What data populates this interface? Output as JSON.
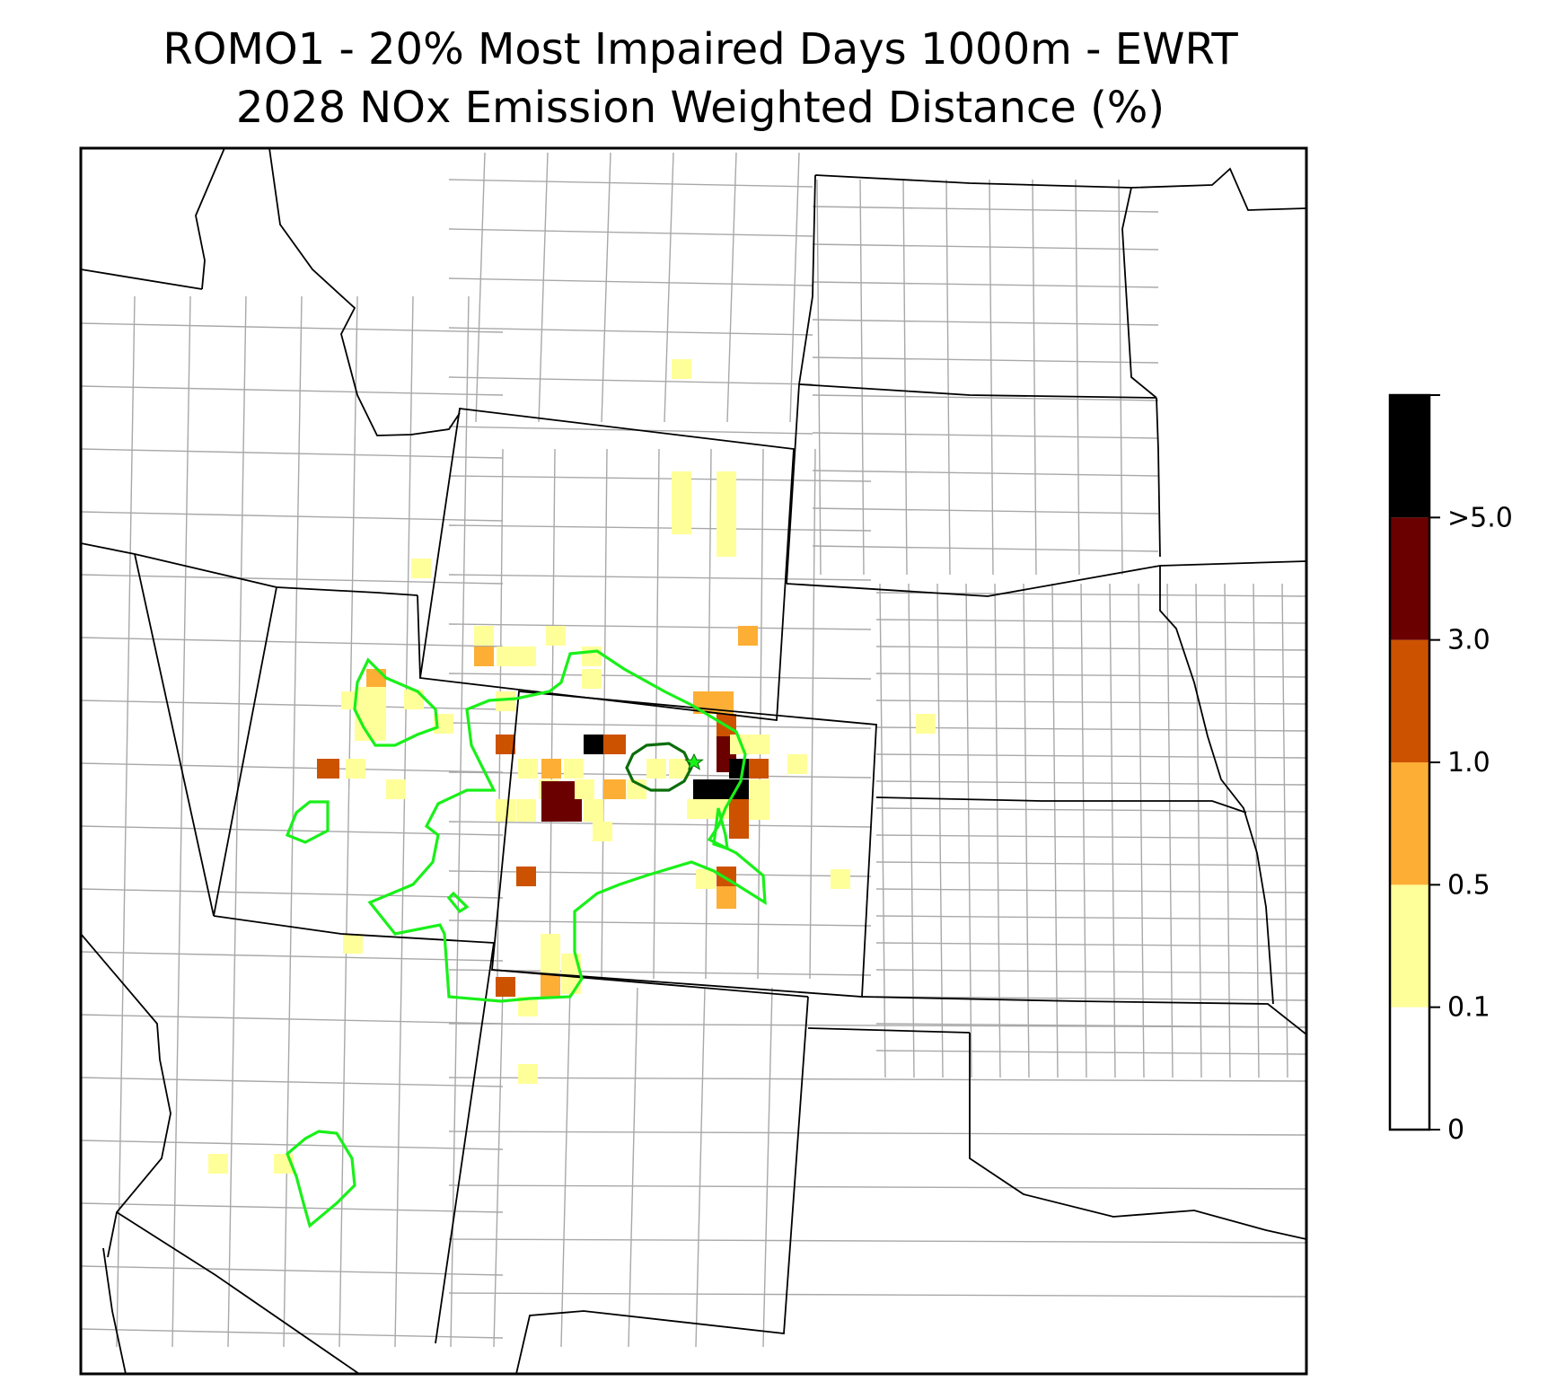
{
  "title_line1": "ROMO1 - 20% Most Impaired Days 1000m - EWRT",
  "title_line2": "2028 NOx Emission Weighted Distance (%)",
  "colorbar": {
    "tick_labels": [
      "0",
      "0.1",
      "0.5",
      "1.0",
      "3.0",
      ">5.0"
    ],
    "colors": [
      "#ffffff",
      "#ffff99",
      "#fdae35",
      "#cc5200",
      "#6b0000",
      "#000000"
    ]
  },
  "colors": {
    "contour_outer": "#19f019",
    "contour_inner": "#0b6e0b",
    "state_border": "#000000",
    "county_border": "#a8a8a8",
    "site_marker": "#19f019"
  },
  "legend_bins": [
    "0–0.1",
    "0.1–0.5",
    "0.5–1.0",
    "1.0–3.0",
    "3.0–5.0",
    ">5.0"
  ],
  "markers": [
    {
      "name": "ROMO1",
      "symbol": "star"
    }
  ]
}
